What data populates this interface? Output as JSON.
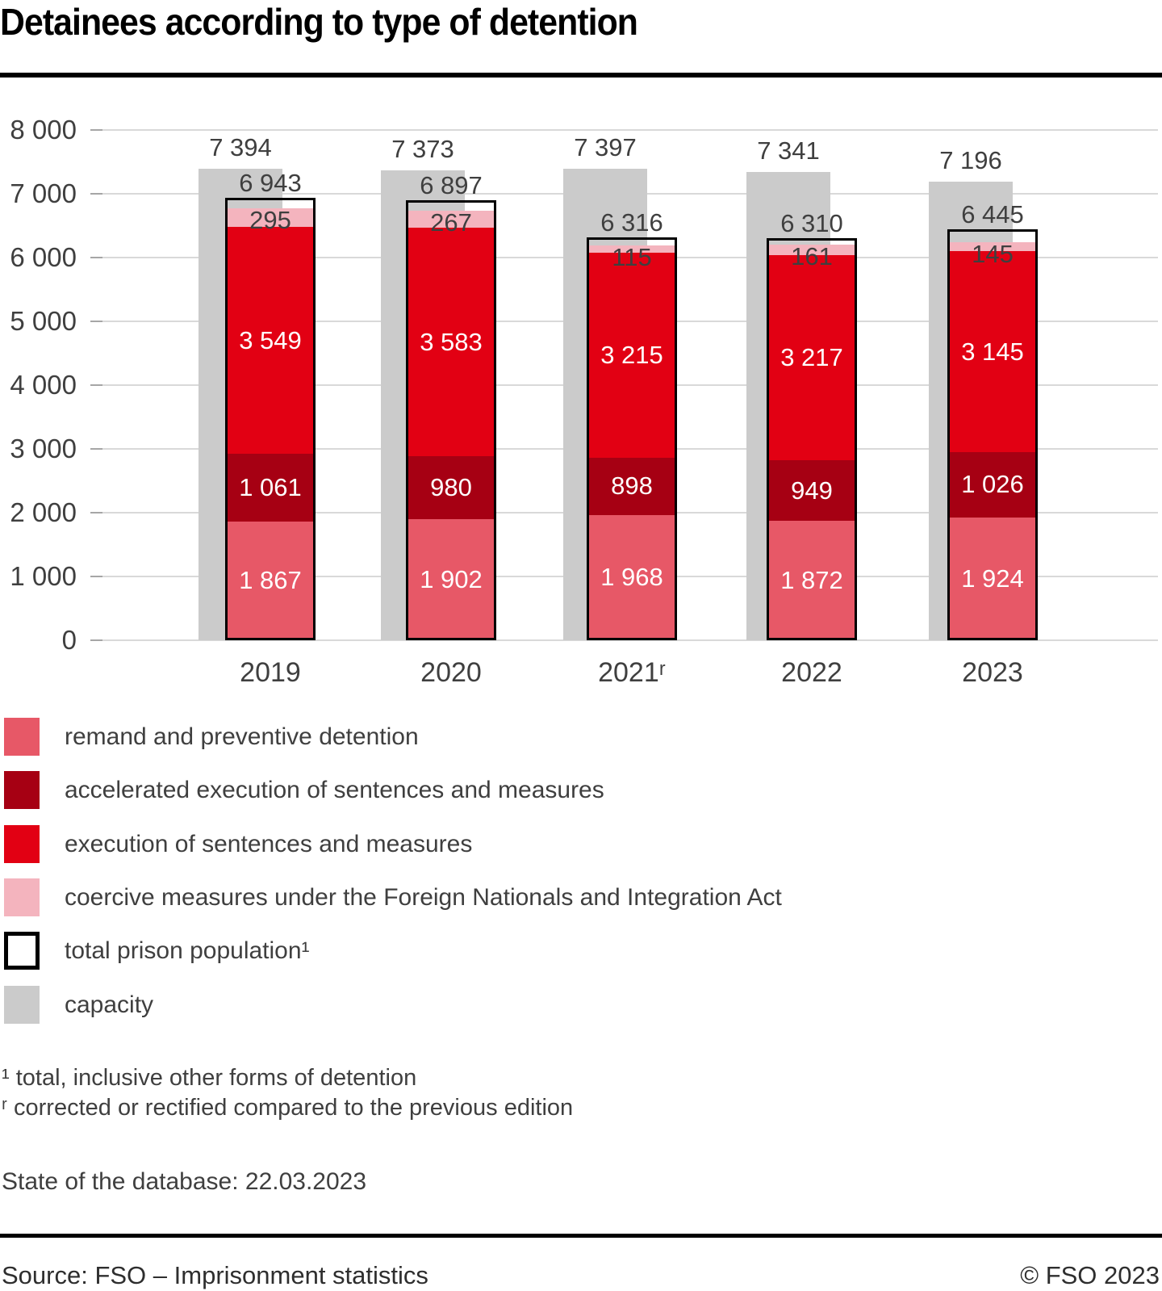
{
  "title": "Detainees according to type of detention",
  "chart_data": {
    "type": "bar",
    "stacked": true,
    "title": "Detainees according to type of detention",
    "categories": [
      "2019",
      "2020",
      "2021ʳ",
      "2022",
      "2023"
    ],
    "series": [
      {
        "key": "remand",
        "name": "remand and preventive detention",
        "color": "#e75867",
        "label_color": "#ffffff",
        "values": [
          1867,
          1902,
          1968,
          1872,
          1924
        ]
      },
      {
        "key": "accelerated",
        "name": "accelerated execution of sentences and measures",
        "color": "#a60013",
        "label_color": "#ffffff",
        "values": [
          1061,
          980,
          898,
          949,
          1026
        ]
      },
      {
        "key": "execution",
        "name": "execution of sentences and measures",
        "color": "#e20013",
        "label_color": "#ffffff",
        "values": [
          3549,
          3583,
          3215,
          3217,
          3145
        ]
      },
      {
        "key": "coercive",
        "name": "coercive measures under the Foreign Nationals and Integration Act",
        "color": "#f4b4be",
        "label_color": "#3f3f3f",
        "values": [
          295,
          267,
          115,
          161,
          145
        ]
      }
    ],
    "totals": {
      "key": "total",
      "name": "total prison population¹",
      "values": [
        6943,
        6897,
        6316,
        6310,
        6445
      ]
    },
    "capacity": {
      "key": "capacity",
      "name": "capacity",
      "color": "#cbcbcb",
      "values": [
        7394,
        7373,
        7397,
        7341,
        7196
      ]
    },
    "ylim": [
      0,
      8000
    ],
    "ytick_step": 1000,
    "grid": true,
    "legend_position": "bottom",
    "number_format": "space-thousands",
    "label_text_color": "#3f3f3f"
  },
  "legend": [
    {
      "label": "remand and preventive detention",
      "swatch": "#e75867"
    },
    {
      "label": "accelerated execution of sentences and measures",
      "swatch": "#a60013"
    },
    {
      "label": "execution of sentences and measures",
      "swatch": "#e20013"
    },
    {
      "label": "coercive measures under the Foreign Nationals and Integration Act",
      "swatch": "#f4b4be"
    },
    {
      "label": "total prison population¹",
      "swatch": "outline"
    },
    {
      "label": "capacity",
      "swatch": "#cbcbcb"
    }
  ],
  "footnotes": [
    "¹ total, inclusive other forms of detention",
    "ʳ corrected or rectified compared to the previous edition"
  ],
  "status_line": "State of the database: 22.03.2023",
  "footer": {
    "source": "Source: FSO – Imprisonment statistics",
    "copyright": "© FSO 2023"
  }
}
